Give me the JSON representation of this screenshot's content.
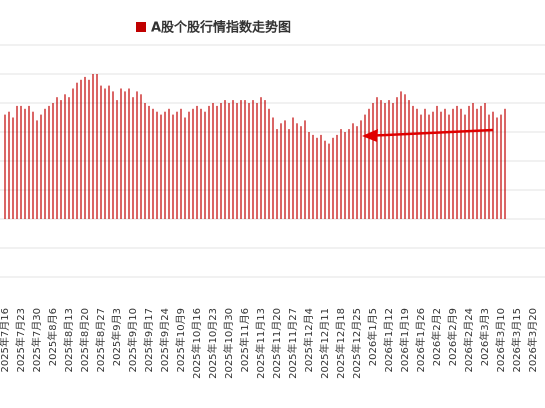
{
  "chart_data": {
    "type": "bar",
    "series": [
      {
        "name": "A股个股行情指数走势图",
        "color": "#c00000",
        "values": [
          3.6,
          3.7,
          3.5,
          3.9,
          3.9,
          3.8,
          3.9,
          3.7,
          3.4,
          3.6,
          3.8,
          3.9,
          4.0,
          4.2,
          4.1,
          4.3,
          4.2,
          4.5,
          4.7,
          4.8,
          4.9,
          4.8,
          5.0,
          5.0,
          4.6,
          4.5,
          4.6,
          4.4,
          4.1,
          4.5,
          4.4,
          4.5,
          4.2,
          4.4,
          4.3,
          4.0,
          3.9,
          3.8,
          3.7,
          3.6,
          3.7,
          3.8,
          3.6,
          3.7,
          3.8,
          3.5,
          3.7,
          3.8,
          3.9,
          3.8,
          3.7,
          3.9,
          4.0,
          3.9,
          4.0,
          4.1,
          4.0,
          4.1,
          4.0,
          4.1,
          4.1,
          4.0,
          4.1,
          4.0,
          4.2,
          4.1,
          3.8,
          3.5,
          3.1,
          3.3,
          3.4,
          3.1,
          3.5,
          3.3,
          3.2,
          3.4,
          3.0,
          2.9,
          2.8,
          2.9,
          2.7,
          2.6,
          2.8,
          2.9,
          3.1,
          3.0,
          3.1,
          3.3,
          3.2,
          3.4,
          3.6,
          3.8,
          4.0,
          4.2,
          4.1,
          4.0,
          4.1,
          4.0,
          4.2,
          4.4,
          4.3,
          4.1,
          3.9,
          3.8,
          3.6,
          3.8,
          3.6,
          3.7,
          3.9,
          3.7,
          3.8,
          3.6,
          3.8,
          3.9,
          3.8,
          3.6,
          3.9,
          4.0,
          3.8,
          3.9,
          4.0,
          3.6,
          3.7,
          3.5,
          3.6,
          3.8,
          null,
          null,
          null,
          null,
          null,
          null,
          null
        ]
      }
    ],
    "categories": [
      "2025年7月16",
      null,
      null,
      null,
      "2025年7月23",
      null,
      null,
      null,
      "2025年7月30",
      null,
      null,
      null,
      "2025年8月6",
      null,
      null,
      null,
      "2025年8月13",
      null,
      null,
      null,
      "2025年8月20",
      null,
      null,
      null,
      "2025年8月27",
      null,
      null,
      null,
      "2025年9月3",
      null,
      null,
      null,
      "2025年9月10",
      null,
      null,
      null,
      "2025年9月17",
      null,
      null,
      null,
      "2025年9月24",
      null,
      null,
      null,
      "2025年10月9",
      null,
      null,
      null,
      "2025年10月16",
      null,
      null,
      null,
      "2025年10月23",
      null,
      null,
      null,
      "2025年10月30",
      null,
      null,
      null,
      "2025年11月6",
      null,
      null,
      null,
      "2025年11月13",
      null,
      null,
      null,
      "2025年11月20",
      null,
      null,
      null,
      "2025年11月27",
      null,
      null,
      null,
      "2025年12月4",
      null,
      null,
      null,
      "2025年12月11",
      null,
      null,
      null,
      "2025年12月18",
      null,
      null,
      null,
      "2025年12月25",
      null,
      null,
      null,
      "2026年1月5",
      null,
      null,
      null,
      "2026年1月12",
      null,
      null,
      null,
      "2026年1月19",
      null,
      null,
      null,
      "2026年1月26",
      null,
      null,
      null,
      "2026年2月2",
      null,
      null,
      null,
      "2026年2月9",
      null,
      null,
      null,
      "2026年2月24",
      null,
      null,
      null,
      "2026年3月3",
      null,
      null,
      null,
      "2026年3月10",
      null,
      null,
      null,
      "2026年3月15",
      null,
      null,
      null,
      "2026年3月20"
    ],
    "ylim": [
      -3,
      6
    ],
    "gridlines": [
      -2,
      -1,
      0,
      1,
      2,
      3,
      4,
      5,
      6
    ],
    "grid": true
  }
}
